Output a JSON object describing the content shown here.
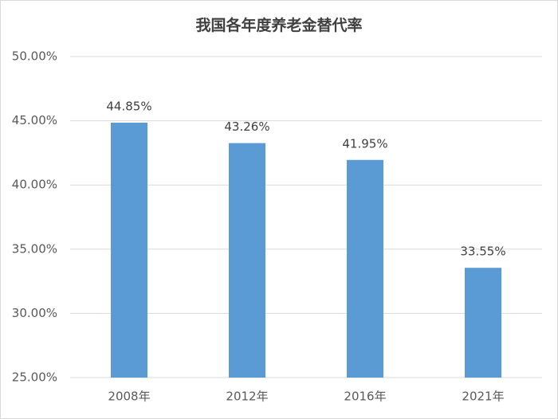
{
  "chart_data": {
    "type": "bar",
    "title": "我国各年度养老金替代率",
    "categories": [
      "2008年",
      "2012年",
      "2016年",
      "2021年"
    ],
    "values": [
      44.85,
      43.26,
      41.95,
      33.55
    ],
    "value_labels": [
      "44.85%",
      "43.26%",
      "41.95%",
      "33.55%"
    ],
    "color": "#5b9bd5",
    "ylim": [
      25,
      50
    ],
    "yticks": [
      {
        "value": 25,
        "label": "25.00%"
      },
      {
        "value": 30,
        "label": "30.00%"
      },
      {
        "value": 35,
        "label": "35.00%"
      },
      {
        "value": 40,
        "label": "40.00%"
      },
      {
        "value": 45,
        "label": "45.00%"
      },
      {
        "value": 50,
        "label": "50.00%"
      }
    ],
    "grid": true
  }
}
